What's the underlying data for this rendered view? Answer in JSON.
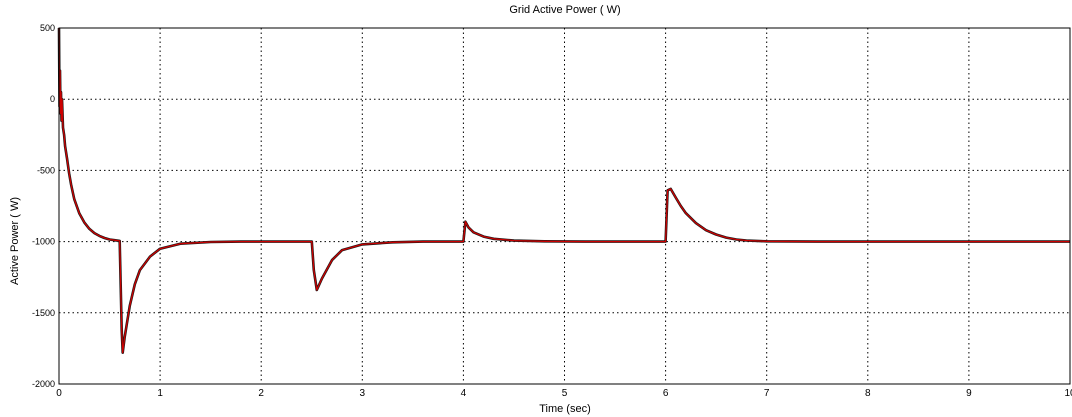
{
  "chart_data": {
    "type": "line",
    "title": "Grid Active Power ( W)",
    "xlabel": "Time (sec)",
    "ylabel": "Active Power ( W)",
    "xlim": [
      0,
      10
    ],
    "ylim": [
      -2000,
      500
    ],
    "xticks": [
      0,
      1,
      2,
      3,
      4,
      5,
      6,
      7,
      8,
      9,
      10
    ],
    "yticks": [
      500,
      0,
      -500,
      -1000,
      -1500,
      -2000
    ],
    "xtick_labels": [
      "0",
      "1",
      "2",
      "3",
      "4",
      "5",
      "6",
      "7",
      "8",
      "9",
      "10"
    ],
    "ytick_labels": [
      "500",
      "0",
      "-500",
      "-1000",
      "-1500",
      "-2000"
    ],
    "grid": true,
    "series": [
      {
        "color": "#cc0000",
        "shadow_color": "#1a1a1a",
        "x": [
          0,
          0.005,
          0.01,
          0.015,
          0.02,
          0.025,
          0.03,
          0.04,
          0.05,
          0.06,
          0.08,
          0.1,
          0.12,
          0.15,
          0.2,
          0.25,
          0.3,
          0.35,
          0.4,
          0.45,
          0.5,
          0.55,
          0.6,
          0.6,
          0.62,
          0.63,
          0.65,
          0.7,
          0.75,
          0.8,
          0.9,
          1.0,
          1.2,
          1.5,
          1.8,
          2.0,
          2.2,
          2.5,
          2.5,
          2.52,
          2.55,
          2.6,
          2.7,
          2.8,
          3.0,
          3.3,
          3.6,
          4.0,
          4.0,
          4.02,
          4.05,
          4.1,
          4.2,
          4.3,
          4.5,
          4.8,
          5.2,
          5.6,
          6.0,
          6.0,
          6.02,
          6.05,
          6.1,
          6.15,
          6.2,
          6.3,
          6.4,
          6.5,
          6.6,
          6.7,
          6.8,
          7.0,
          7.5,
          8.0,
          8.5,
          9.0,
          9.5,
          10.0
        ],
        "y": [
          500,
          -50,
          200,
          -100,
          50,
          -150,
          0,
          -200,
          -250,
          -330,
          -420,
          -520,
          -600,
          -700,
          -800,
          -865,
          -910,
          -940,
          -960,
          -975,
          -985,
          -990,
          -995,
          -1000,
          -1620,
          -1780,
          -1670,
          -1450,
          -1300,
          -1200,
          -1105,
          -1050,
          -1015,
          -1003,
          -1000,
          -1000,
          -1000,
          -1000,
          -1000,
          -1200,
          -1340,
          -1260,
          -1130,
          -1060,
          -1020,
          -1005,
          -1000,
          -1000,
          -1000,
          -860,
          -900,
          -935,
          -965,
          -980,
          -993,
          -998,
          -1000,
          -1000,
          -1000,
          -1000,
          -640,
          -630,
          -690,
          -750,
          -800,
          -870,
          -920,
          -950,
          -972,
          -985,
          -992,
          -998,
          -1000,
          -1000,
          -1000,
          -1000,
          -1000,
          -1000
        ]
      }
    ]
  }
}
